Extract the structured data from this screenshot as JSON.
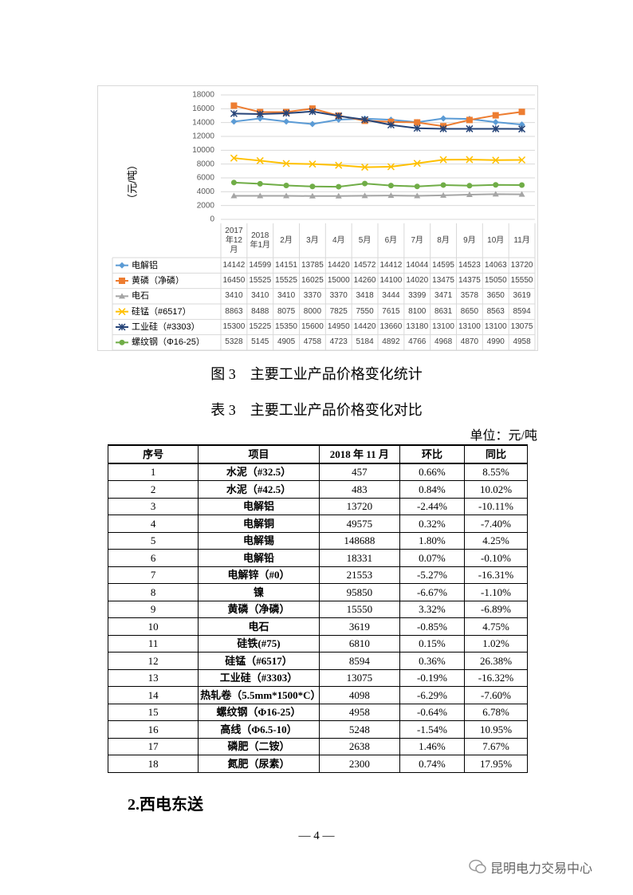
{
  "chart_data": {
    "type": "line",
    "y_label": "（元/吨）",
    "categories": [
      "2017年12月",
      "2018年1月",
      "2月",
      "3月",
      "4月",
      "5月",
      "6月",
      "7月",
      "8月",
      "9月",
      "10月",
      "11月"
    ],
    "ylim": [
      0,
      18000
    ],
    "yticks": [
      0,
      2000,
      4000,
      6000,
      8000,
      10000,
      12000,
      14000,
      16000,
      18000
    ],
    "grid": true,
    "series": [
      {
        "name": "电解铝",
        "color": "#5b9bd5",
        "marker": "diamond",
        "values": [
          14142,
          14599,
          14151,
          13785,
          14420,
          14572,
          14412,
          14044,
          14595,
          14523,
          14063,
          13720
        ]
      },
      {
        "name": "黄磷（净磷）",
        "color": "#ed7d31",
        "marker": "square",
        "values": [
          16450,
          15525,
          15525,
          16025,
          15000,
          14260,
          14100,
          14020,
          13475,
          14375,
          15050,
          15550
        ]
      },
      {
        "name": "电石",
        "color": "#a5a5a5",
        "marker": "triangle",
        "values": [
          3410,
          3410,
          3410,
          3370,
          3370,
          3418,
          3444,
          3399,
          3471,
          3578,
          3650,
          3619
        ]
      },
      {
        "name": "硅锰（#6517）",
        "color": "#ffc000",
        "marker": "x",
        "values": [
          8863,
          8488,
          8075,
          8000,
          7825,
          7550,
          7615,
          8100,
          8631,
          8650,
          8563,
          8594
        ]
      },
      {
        "name": "工业硅（#3303）",
        "color": "#264478",
        "marker": "star",
        "values": [
          15300,
          15225,
          15350,
          15600,
          14950,
          14420,
          13660,
          13180,
          13100,
          13100,
          13100,
          13075
        ]
      },
      {
        "name": "螺纹钢（Φ16-25）",
        "color": "#70ad47",
        "marker": "circle",
        "values": [
          5328,
          5145,
          4905,
          4758,
          4723,
          5184,
          4892,
          4766,
          4968,
          4870,
          4990,
          4958
        ]
      }
    ]
  },
  "figure_caption": "图 3　主要工业产品价格变化统计",
  "table_caption": "表 3　主要工业产品价格变化对比",
  "unit": "单位：元/吨",
  "table": {
    "header": [
      "序号",
      "项目",
      "2018 年 11 月",
      "环比",
      "同比"
    ],
    "rows": [
      [
        "1",
        "水泥（#32.5）",
        "457",
        "0.66%",
        "8.55%"
      ],
      [
        "2",
        "水泥（#42.5）",
        "483",
        "0.84%",
        "10.02%"
      ],
      [
        "3",
        "电解铝",
        "13720",
        "-2.44%",
        "-10.11%"
      ],
      [
        "4",
        "电解铜",
        "49575",
        "0.32%",
        "-7.40%"
      ],
      [
        "5",
        "电解锡",
        "148688",
        "1.80%",
        "4.25%"
      ],
      [
        "6",
        "电解铅",
        "18331",
        "0.07%",
        "-0.10%"
      ],
      [
        "7",
        "电解锌（#0）",
        "21553",
        "-5.27%",
        "-16.31%"
      ],
      [
        "8",
        "镍",
        "95850",
        "-6.67%",
        "-1.10%"
      ],
      [
        "9",
        "黄磷（净磷）",
        "15550",
        "3.32%",
        "-6.89%"
      ],
      [
        "10",
        "电石",
        "3619",
        "-0.85%",
        "4.75%"
      ],
      [
        "11",
        "硅铁(#75)",
        "6810",
        "0.15%",
        "1.02%"
      ],
      [
        "12",
        "硅锰（#6517）",
        "8594",
        "0.36%",
        "26.38%"
      ],
      [
        "13",
        "工业硅（#3303）",
        "13075",
        "-0.19%",
        "-16.32%"
      ],
      [
        "14",
        "热轧卷（5.5mm*1500*C）",
        "4098",
        "-6.29%",
        "-7.60%"
      ],
      [
        "15",
        "螺纹钢（Φ16-25）",
        "4958",
        "-0.64%",
        "6.78%"
      ],
      [
        "16",
        "高线（Φ6.5-10）",
        "5248",
        "-1.54%",
        "10.95%"
      ],
      [
        "17",
        "磷肥（二铵）",
        "2638",
        "1.46%",
        "7.67%"
      ],
      [
        "18",
        "氮肥（尿素）",
        "2300",
        "0.74%",
        "17.95%"
      ]
    ]
  },
  "section_heading": "2.西电东送",
  "page_number": "— 4 —",
  "watermark": "昆明电力交易中心"
}
